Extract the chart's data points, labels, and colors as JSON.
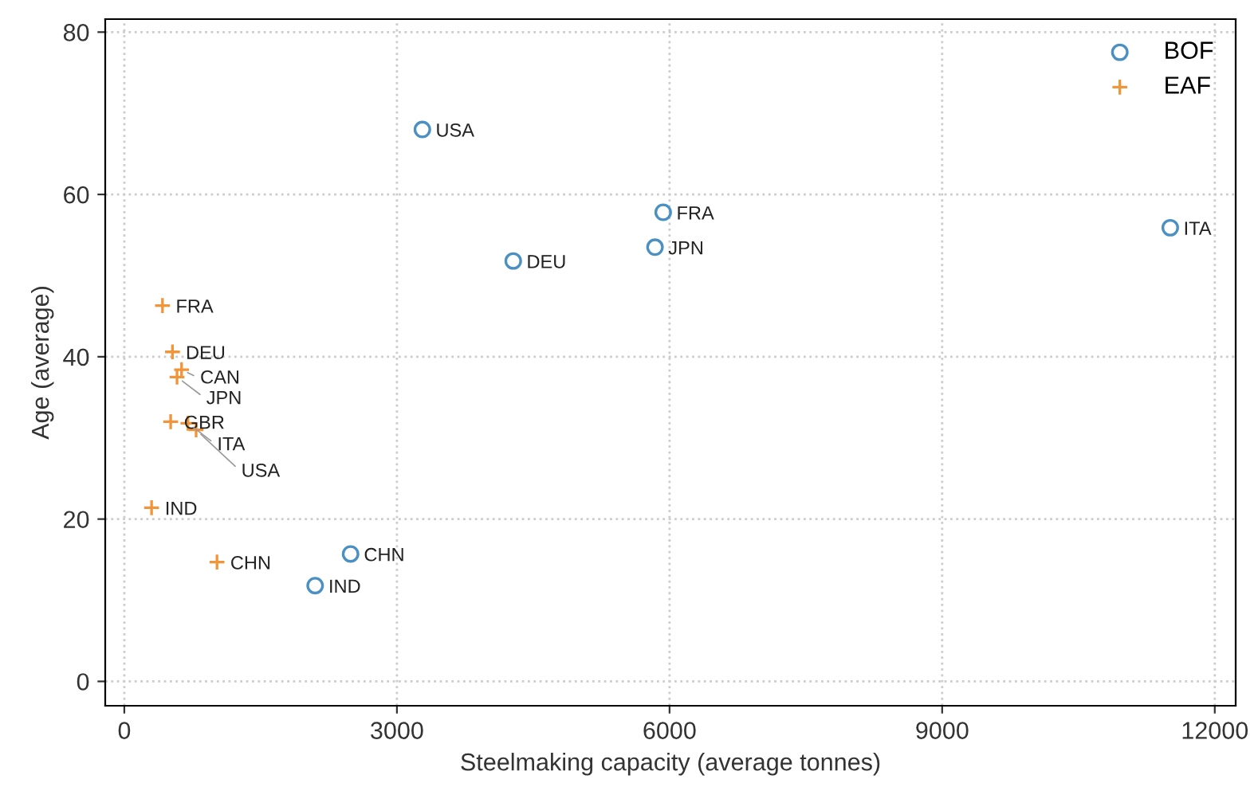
{
  "chart_data": {
    "type": "scatter",
    "xlabel": "Steelmaking capacity (average tonnes)",
    "ylabel": "Age (average)",
    "xlim": [
      -210,
      12230
    ],
    "ylim": [
      -3,
      81.6
    ],
    "xticks": [
      0,
      3000,
      6000,
      9000,
      12000
    ],
    "yticks": [
      0,
      20,
      40,
      60,
      80
    ],
    "grid": true,
    "legend": "top right",
    "series": [
      {
        "name": "BOF",
        "color": "#4a90c2",
        "marker": "circle",
        "x": [
          3280,
          5930,
          5840,
          4280,
          11510,
          2490,
          2100
        ],
        "values": [
          68,
          57.8,
          53.5,
          51.8,
          55.9,
          15.7,
          11.8
        ]
      },
      {
        "name": "EAF",
        "color": "#f0953a",
        "marker": "cross",
        "x": [
          420,
          530,
          630,
          580,
          510,
          700,
          790,
          300,
          1020
        ],
        "values": [
          46.3,
          40.6,
          38.4,
          37.5,
          32,
          31.8,
          31,
          21.4,
          14.7
        ]
      }
    ],
    "annotations": [
      {
        "text": "USA",
        "x": 3280,
        "y": 68
      },
      {
        "text": "FRA",
        "x": 5930,
        "y": 57.8
      },
      {
        "text": "JPN",
        "x": 5840,
        "y": 53.5
      },
      {
        "text": "DEU",
        "x": 4280,
        "y": 51.8
      },
      {
        "text": "ITA",
        "x": 11510,
        "y": 55.9
      },
      {
        "text": "CHN",
        "x": 2490,
        "y": 15.7
      },
      {
        "text": "IND",
        "x": 2100,
        "y": 11.8
      },
      {
        "text": "FRA",
        "x": 420,
        "y": 46.3
      },
      {
        "text": "DEU",
        "x": 530,
        "y": 40.6
      },
      {
        "text": "CAN",
        "x": 630,
        "y": 38.4
      },
      {
        "text": "JPN",
        "x": 580,
        "y": 37.5
      },
      {
        "text": "GBR",
        "x": 510,
        "y": 32
      },
      {
        "text": "ITA",
        "x": 700,
        "y": 31.8
      },
      {
        "text": "USA",
        "x": 790,
        "y": 31
      },
      {
        "text": "IND",
        "x": 300,
        "y": 21.4
      },
      {
        "text": "CHN",
        "x": 1020,
        "y": 14.7
      }
    ]
  }
}
